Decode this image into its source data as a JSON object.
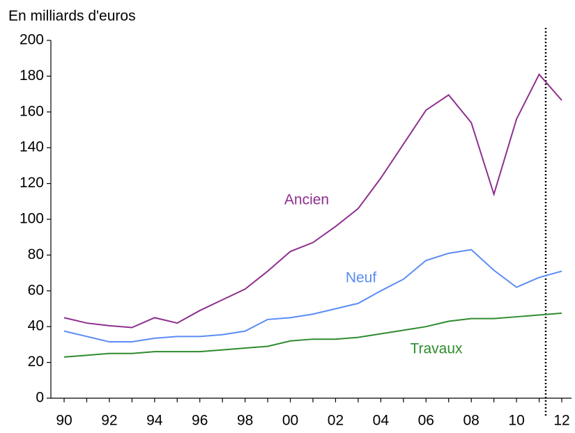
{
  "chart_data": {
    "type": "line",
    "y_label": "En milliards d'euros",
    "categories": [
      "90",
      null,
      "92",
      null,
      "94",
      null,
      "96",
      null,
      "98",
      null,
      "00",
      null,
      "02",
      null,
      "04",
      null,
      "06",
      null,
      "08",
      null,
      "10",
      null,
      "12"
    ],
    "series": [
      {
        "name": "Ancien",
        "color": "#8e2f8e",
        "values": [
          45,
          42,
          40.5,
          39.5,
          45,
          42,
          49,
          55,
          61,
          71,
          82,
          87,
          96,
          106,
          123,
          142,
          161,
          169.5,
          154,
          114,
          156,
          181,
          166.5
        ]
      },
      {
        "name": "Neuf",
        "color": "#5a8cf5",
        "values": [
          37.5,
          34.5,
          31.5,
          31.5,
          33.5,
          34.5,
          34.5,
          35.5,
          37.5,
          44,
          45,
          47,
          50,
          53,
          60,
          66.5,
          77,
          81,
          83,
          71.5,
          62,
          67.5,
          71
        ]
      },
      {
        "name": "Travaux",
        "color": "#2e8b2e",
        "values": [
          23,
          24,
          25,
          25,
          26,
          26,
          26,
          27,
          28,
          29,
          32,
          33,
          33,
          34,
          36,
          38,
          40,
          43,
          44.5,
          44.5,
          45.5,
          46.5,
          47.5
        ]
      }
    ],
    "ylim": [
      0,
      200
    ],
    "yticks": [
      0,
      20,
      40,
      60,
      80,
      100,
      120,
      140,
      160,
      180,
      200
    ],
    "grid": false
  }
}
